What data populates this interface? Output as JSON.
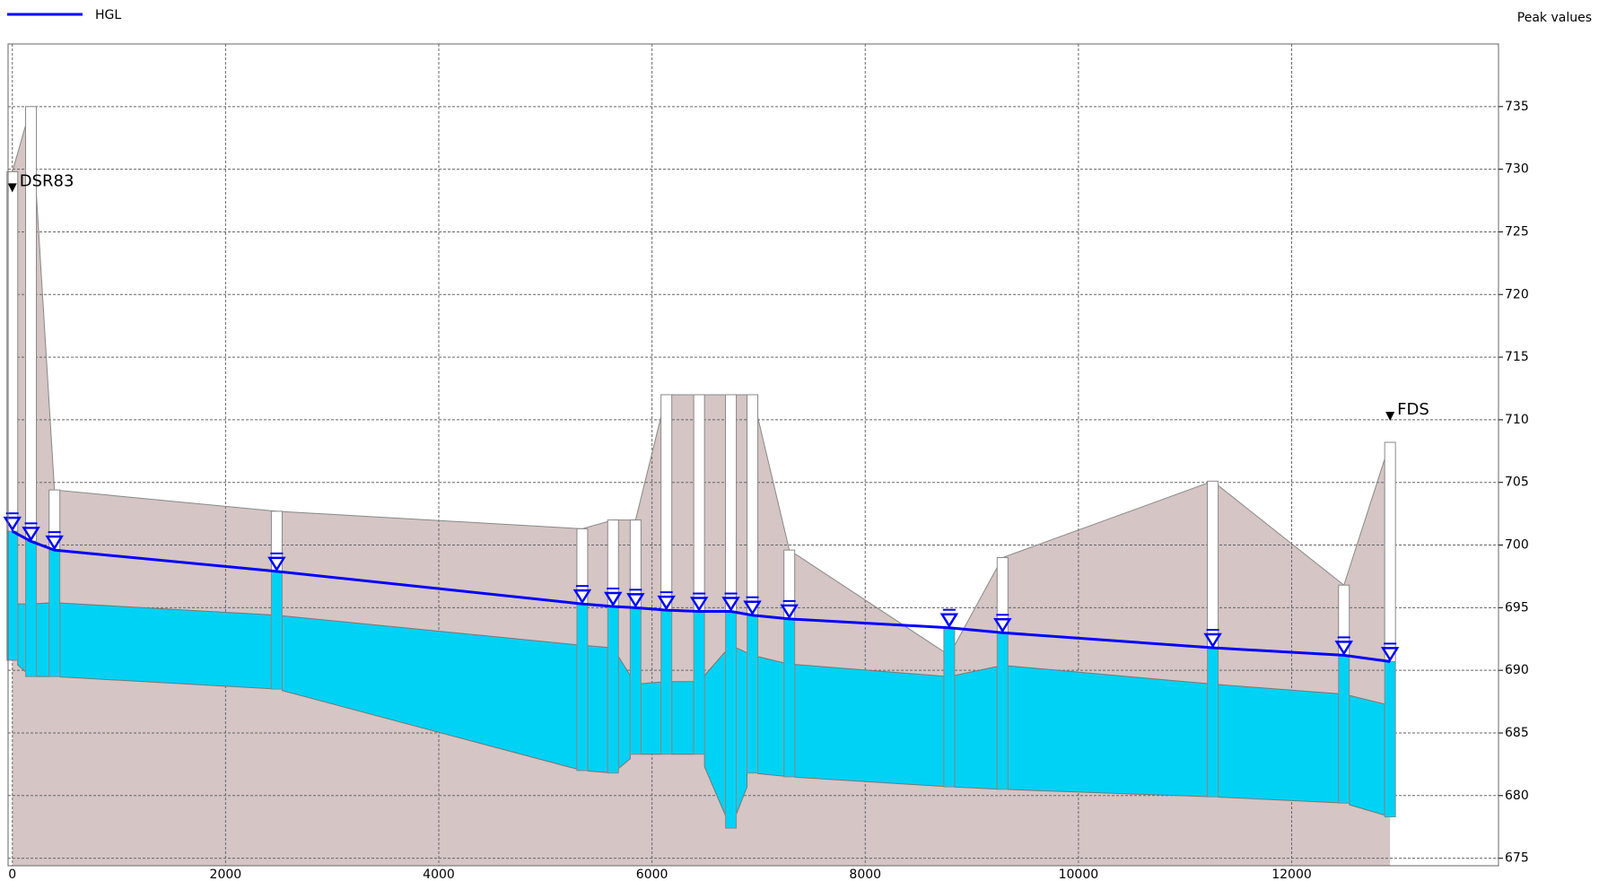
{
  "chart_data": {
    "type": "profile",
    "subtitle": "Peak values",
    "x": [
      0,
      175,
      395,
      2480,
      5346,
      5635,
      5846,
      6135,
      6442,
      6740,
      6942,
      7288,
      8788,
      9288,
      11260,
      12490,
      12923
    ],
    "node_labels": [
      "DSR83",
      null,
      null,
      null,
      null,
      null,
      null,
      null,
      null,
      null,
      null,
      null,
      null,
      null,
      null,
      null,
      "FDS"
    ],
    "rim": [
      729.8,
      735,
      704.4,
      702.7,
      701.3,
      702,
      702,
      712,
      712,
      712,
      712,
      699.6,
      691.2,
      699,
      705.1,
      696.8,
      708.2
    ],
    "invert": [
      690.8,
      689.5,
      689.5,
      688.5,
      682,
      681.8,
      683.3,
      683.3,
      683.3,
      677.4,
      681.8,
      681.5,
      680.7,
      680.5,
      679.9,
      679.4,
      678.3
    ],
    "crown": [
      695.3,
      695.3,
      695.4,
      694.4,
      692,
      691.8,
      688.9,
      689.1,
      689.1,
      692,
      691.2,
      690.5,
      689.5,
      690.4,
      688.9,
      688.1,
      687.2
    ],
    "series": [
      {
        "name": "HGL",
        "color": "#0000ff",
        "values": [
          701.1,
          700.3,
          699.6,
          697.9,
          695.3,
          695.1,
          695,
          694.8,
          694.7,
          694.7,
          694.4,
          694.1,
          693.4,
          693,
          691.8,
          691.2,
          690.7
        ]
      }
    ],
    "ground_color": "#d5c5c5",
    "water_color": "#00d2f5",
    "xlim": [
      -40,
      13940
    ],
    "ylim": [
      674.4,
      740
    ],
    "xticks": [
      0,
      2000,
      4000,
      6000,
      8000,
      10000,
      12000
    ],
    "yticks": [
      675,
      680,
      685,
      690,
      695,
      700,
      705,
      710,
      715,
      720,
      725,
      730,
      735
    ],
    "grid": true
  }
}
